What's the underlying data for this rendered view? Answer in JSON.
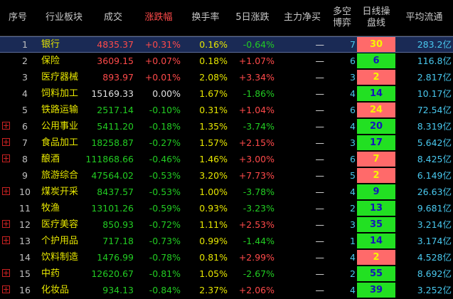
{
  "headers": [
    {
      "key": "seq",
      "label": "序号"
    },
    {
      "key": "sector",
      "label": "行业板块"
    },
    {
      "key": "volume",
      "label": "成交"
    },
    {
      "key": "change",
      "label": "涨跌幅"
    },
    {
      "key": "turnover",
      "label": "换手率"
    },
    {
      "key": "change5",
      "label": "5日涨跌"
    },
    {
      "key": "mainflow",
      "label": "主力净买"
    },
    {
      "key": "game",
      "label": "多空\n博弈"
    },
    {
      "key": "board",
      "label": "日线操\n盘线"
    },
    {
      "key": "avg",
      "label": "平均流通"
    }
  ],
  "rows": [
    {
      "seq": "1",
      "name": "银行",
      "vol": "4835.37",
      "chg": "+0.31%",
      "turn": "0.16%",
      "c5": "-0.64%",
      "main": "—",
      "game": "7",
      "board": "30",
      "board_color": "red",
      "avg": "283.2亿",
      "plus": false,
      "selected": true
    },
    {
      "seq": "2",
      "name": "保险",
      "vol": "3609.15",
      "chg": "+0.07%",
      "turn": "0.18%",
      "c5": "+1.07%",
      "main": "—",
      "game": "6",
      "board": "6",
      "board_color": "green",
      "avg": "116.8亿",
      "plus": false,
      "selected": false
    },
    {
      "seq": "3",
      "name": "医疗器械",
      "vol": "893.97",
      "chg": "+0.01%",
      "turn": "2.08%",
      "c5": "+3.34%",
      "main": "—",
      "game": "3",
      "board": "2",
      "board_color": "red",
      "avg": "2.817亿",
      "plus": false,
      "selected": false
    },
    {
      "seq": "4",
      "name": "饲料加工",
      "vol": "15169.33",
      "chg": "0.00%",
      "turn": "1.67%",
      "c5": "-1.86%",
      "main": "—",
      "game": "4",
      "board": "14",
      "board_color": "green",
      "avg": "10.17亿",
      "plus": false,
      "selected": false
    },
    {
      "seq": "5",
      "name": "铁路运输",
      "vol": "2517.14",
      "chg": "-0.10%",
      "turn": "0.31%",
      "c5": "+1.04%",
      "main": "—",
      "game": "6",
      "board": "24",
      "board_color": "red",
      "avg": "72.54亿",
      "plus": false,
      "selected": false
    },
    {
      "seq": "6",
      "name": "公用事业",
      "vol": "5411.20",
      "chg": "-0.18%",
      "turn": "1.35%",
      "c5": "-3.74%",
      "main": "—",
      "game": "4",
      "board": "20",
      "board_color": "green",
      "avg": "8.319亿",
      "plus": true,
      "selected": false
    },
    {
      "seq": "7",
      "name": "食品加工",
      "vol": "18258.87",
      "chg": "-0.27%",
      "turn": "1.57%",
      "c5": "+2.15%",
      "main": "—",
      "game": "3",
      "board": "17",
      "board_color": "green",
      "avg": "5.642亿",
      "plus": true,
      "selected": false
    },
    {
      "seq": "8",
      "name": "酿酒",
      "vol": "111868.66",
      "chg": "-0.46%",
      "turn": "1.46%",
      "c5": "+3.00%",
      "main": "—",
      "game": "6",
      "board": "7",
      "board_color": "red",
      "avg": "8.425亿",
      "plus": true,
      "selected": false
    },
    {
      "seq": "9",
      "name": "旅游综合",
      "vol": "47564.02",
      "chg": "-0.53%",
      "turn": "3.20%",
      "c5": "+7.73%",
      "main": "—",
      "game": "5",
      "board": "2",
      "board_color": "red",
      "avg": "6.149亿",
      "plus": false,
      "selected": false
    },
    {
      "seq": "10",
      "name": "煤炭开采",
      "vol": "8437.57",
      "chg": "-0.53%",
      "turn": "1.00%",
      "c5": "-3.78%",
      "main": "—",
      "game": "4",
      "board": "9",
      "board_color": "green",
      "avg": "26.63亿",
      "plus": true,
      "selected": false
    },
    {
      "seq": "11",
      "name": "牧渔",
      "vol": "13101.26",
      "chg": "-0.59%",
      "turn": "0.93%",
      "c5": "-3.23%",
      "main": "—",
      "game": "2",
      "board": "13",
      "board_color": "green",
      "avg": "9.681亿",
      "plus": false,
      "selected": false
    },
    {
      "seq": "12",
      "name": "医疗美容",
      "vol": "850.93",
      "chg": "-0.72%",
      "turn": "1.11%",
      "c5": "+2.53%",
      "main": "—",
      "game": "3",
      "board": "35",
      "board_color": "green",
      "avg": "3.214亿",
      "plus": true,
      "selected": false
    },
    {
      "seq": "13",
      "name": "个护用品",
      "vol": "717.18",
      "chg": "-0.73%",
      "turn": "0.99%",
      "c5": "-1.44%",
      "main": "—",
      "game": "1",
      "board": "14",
      "board_color": "green",
      "avg": "3.174亿",
      "plus": true,
      "selected": false
    },
    {
      "seq": "14",
      "name": "饮料制造",
      "vol": "1476.99",
      "chg": "-0.78%",
      "turn": "0.81%",
      "c5": "+2.99%",
      "main": "—",
      "game": "4",
      "board": "2",
      "board_color": "red",
      "avg": "4.528亿",
      "plus": false,
      "selected": false
    },
    {
      "seq": "15",
      "name": "中药",
      "vol": "12620.67",
      "chg": "-0.81%",
      "turn": "1.05%",
      "c5": "-2.67%",
      "main": "—",
      "game": "2",
      "board": "55",
      "board_color": "green",
      "avg": "8.692亿",
      "plus": true,
      "selected": false
    },
    {
      "seq": "16",
      "name": "化妆品",
      "vol": "934.13",
      "chg": "-0.84%",
      "turn": "2.37%",
      "c5": "+2.06%",
      "main": "—",
      "game": "4",
      "board": "39",
      "board_color": "green",
      "avg": "3.252亿",
      "plus": true,
      "selected": false
    }
  ]
}
